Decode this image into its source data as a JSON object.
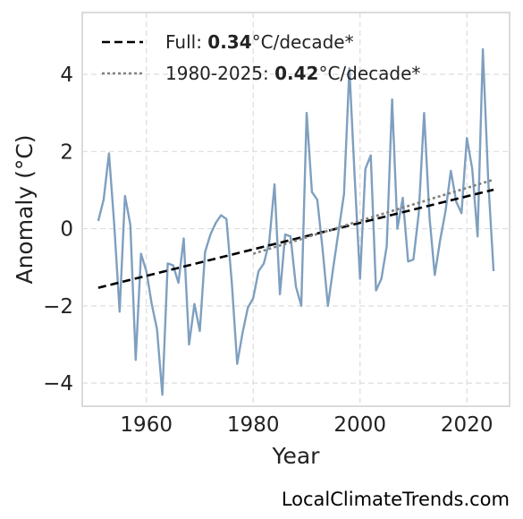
{
  "chart_data": {
    "type": "line",
    "xlabel": "Year",
    "ylabel": "Anomaly (°C)",
    "xlim": [
      1948,
      2028
    ],
    "ylim": [
      -4.6,
      5.6
    ],
    "xticks": [
      1960,
      1980,
      2000,
      2020
    ],
    "yticks": [
      -4,
      -2,
      0,
      2,
      4
    ],
    "ytick_labels": [
      "−4",
      "−2",
      "0",
      "2",
      "4"
    ],
    "grid": true,
    "legend_placement": "top-left",
    "series": [
      {
        "style": "line",
        "color": "#7f9fbf",
        "x": [
          1951,
          1952,
          1953,
          1954,
          1955,
          1956,
          1957,
          1958,
          1959,
          1960,
          1961,
          1962,
          1963,
          1964,
          1965,
          1966,
          1967,
          1968,
          1969,
          1970,
          1971,
          1972,
          1973,
          1974,
          1975,
          1976,
          1977,
          1978,
          1979,
          1980,
          1981,
          1982,
          1983,
          1984,
          1985,
          1986,
          1987,
          1988,
          1989,
          1990,
          1991,
          1992,
          1993,
          1994,
          1995,
          1996,
          1997,
          1998,
          1999,
          2000,
          2001,
          2002,
          2003,
          2004,
          2005,
          2006,
          2007,
          2008,
          2009,
          2010,
          2011,
          2012,
          2013,
          2014,
          2015,
          2016,
          2017,
          2018,
          2019,
          2020,
          2021,
          2022,
          2023,
          2024,
          2025
        ],
        "y": [
          0.2,
          0.75,
          1.95,
          0.1,
          -2.15,
          0.85,
          0.1,
          -3.4,
          -0.65,
          -1.1,
          -1.95,
          -2.6,
          -4.3,
          -0.9,
          -0.95,
          -1.4,
          -0.25,
          -3.0,
          -1.95,
          -2.65,
          -0.6,
          -0.15,
          0.15,
          0.35,
          0.25,
          -1.4,
          -3.5,
          -2.7,
          -2.05,
          -1.8,
          -1.1,
          -0.9,
          -0.35,
          1.15,
          -1.7,
          -0.15,
          -0.2,
          -1.5,
          -2.0,
          3.0,
          0.95,
          0.75,
          -0.55,
          -2.0,
          -1.0,
          -0.05,
          0.9,
          4.15,
          1.35,
          -1.3,
          1.55,
          1.9,
          -1.6,
          -1.3,
          -0.45,
          3.35,
          0.0,
          0.8,
          -0.85,
          -0.8,
          0.4,
          3.0,
          0.3,
          -1.2,
          -0.3,
          0.45,
          1.5,
          0.7,
          0.4,
          2.35,
          1.55,
          -0.2,
          4.65,
          1.25,
          -1.1
        ]
      },
      {
        "name": "Full trend",
        "style": "dashed",
        "color": "#000000",
        "x": [
          1951,
          2025
        ],
        "y": [
          -1.53,
          1.01
        ]
      },
      {
        "name": "1980-2025 trend",
        "style": "dotted",
        "color": "#808080",
        "x": [
          1980,
          2025
        ],
        "y": [
          -0.65,
          1.27
        ]
      }
    ],
    "legend": [
      {
        "prefix": "Full: ",
        "value": "0.34",
        "suffix": "°C/decade*",
        "style": "dashed",
        "color": "#000000"
      },
      {
        "prefix": "1980-2025: ",
        "value": "0.42",
        "suffix": "°C/decade*",
        "style": "dotted",
        "color": "#808080"
      }
    ]
  },
  "watermark": "LocalClimateTrends.com"
}
